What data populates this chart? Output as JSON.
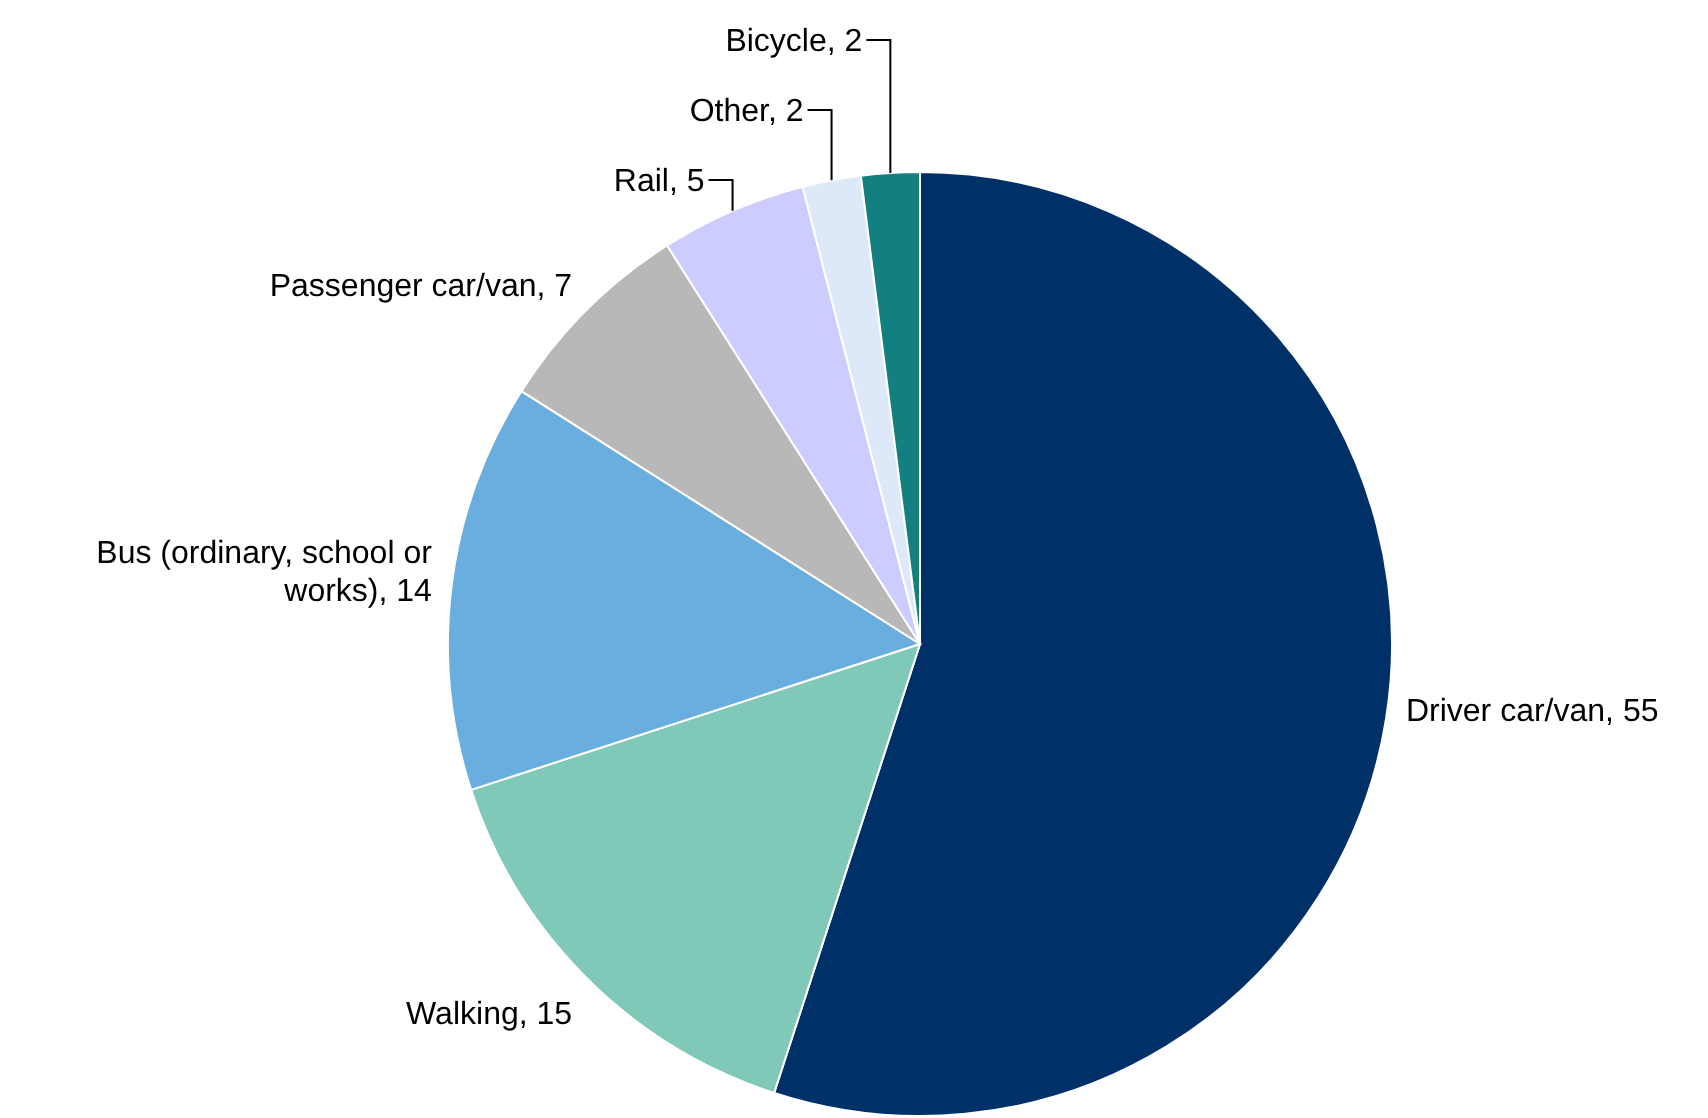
{
  "chart_data": {
    "type": "pie",
    "categories": [
      "Driver car/van",
      "Walking",
      "Bus (ordinary, school or works)",
      "Passenger car/van",
      "Rail",
      "Other",
      "Bicycle"
    ],
    "values": [
      55,
      15,
      14,
      7,
      5,
      2,
      2
    ],
    "colors": [
      "#003068",
      "#80c8b8",
      "#6aaee0",
      "#b8b8b8",
      "#ccccff",
      "#dde8f8",
      "#128080"
    ],
    "value_labels": [
      ", 55",
      ", 15",
      ", 14",
      ", 7",
      ", 5",
      ", 2",
      ", 2"
    ],
    "legend": false
  }
}
